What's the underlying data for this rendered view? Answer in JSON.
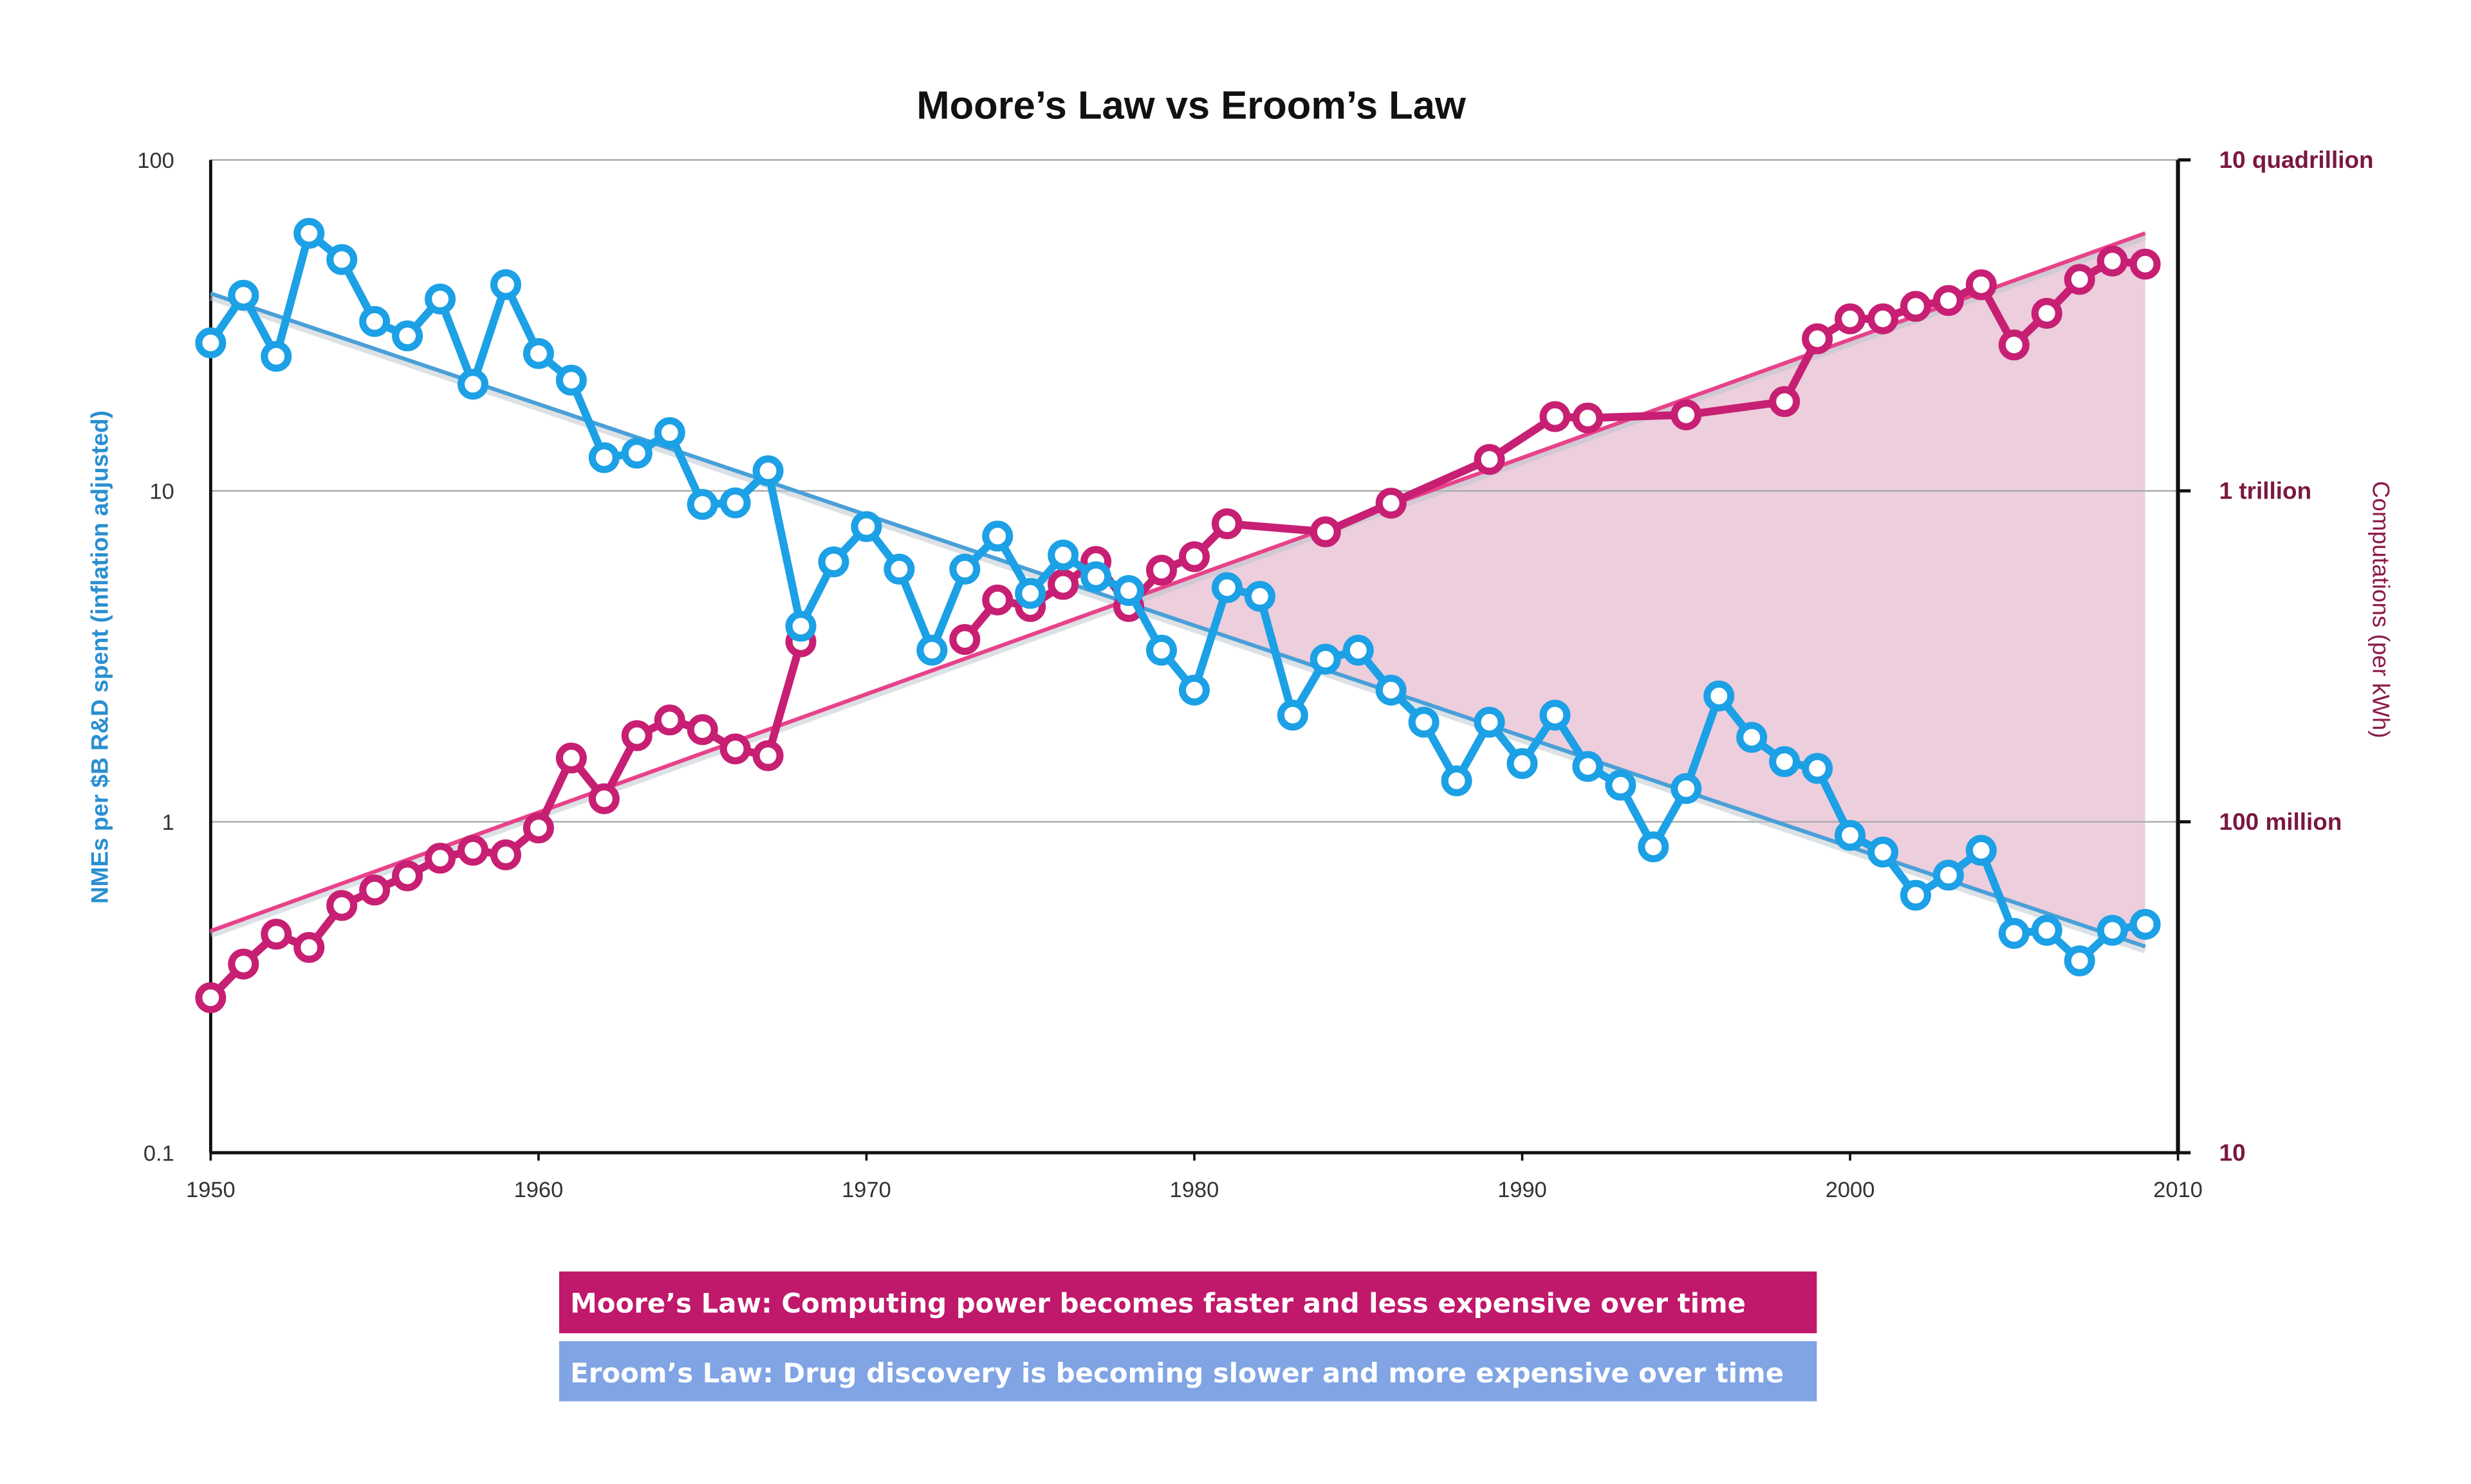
{
  "chart_data": {
    "type": "line",
    "title": "Moore’s Law vs Eroom’s Law",
    "x_ticks": [
      "1950",
      "1960",
      "1970",
      "1980",
      "1990",
      "2000",
      "2010"
    ],
    "xlim": [
      1950,
      2010
    ],
    "left_axis": {
      "label": "NMEs per $B R&D spent (inflation adjusted)",
      "scale": "log",
      "ylim": [
        0.1,
        100
      ],
      "ticks": [
        {
          "value": 100,
          "label": "100"
        },
        {
          "value": 10,
          "label": "10"
        },
        {
          "value": 1,
          "label": "1"
        },
        {
          "value": 0.1,
          "label": "0.1"
        }
      ],
      "color": "#2a8fd0"
    },
    "right_axis": {
      "label": "Computations (per kWh)",
      "scale": "log",
      "ticks": [
        {
          "value": 1e+16,
          "label": "10 quadrillion"
        },
        {
          "value": 1000000000000.0,
          "label": "1 trillion"
        },
        {
          "value": 100000000.0,
          "label": "100 million"
        },
        {
          "value": 10,
          "label": "10"
        }
      ],
      "color": "#7a1840"
    },
    "grid": "horizontal",
    "series": [
      {
        "key": "eroom",
        "axis": "left",
        "color": "#1ca0e6",
        "x": [
          1950,
          1951,
          1952,
          1953,
          1954,
          1955,
          1956,
          1957,
          1958,
          1959,
          1960,
          1961,
          1962,
          1963,
          1964,
          1965,
          1966,
          1967,
          1968,
          1969,
          1970,
          1971,
          1972,
          1973,
          1974,
          1975,
          1976,
          1977,
          1978,
          1979,
          1980,
          1981,
          1982,
          1983,
          1984,
          1985,
          1986,
          1987,
          1988,
          1989,
          1990,
          1991,
          1992,
          1993,
          1994,
          1995,
          1996,
          1997,
          1998,
          1999,
          2000,
          2001,
          2002,
          2003,
          2004,
          2005,
          2006,
          2007,
          2008,
          2009
        ],
        "y": [
          28,
          39,
          25.5,
          60,
          50,
          32.5,
          29.4,
          38,
          21,
          42,
          26,
          21.6,
          12.6,
          13,
          15,
          9.1,
          9.2,
          11.5,
          3.9,
          6.1,
          7.8,
          5.8,
          3.3,
          5.8,
          7.3,
          4.9,
          6.4,
          5.5,
          5.0,
          3.3,
          2.5,
          5.1,
          4.8,
          2.1,
          3.1,
          3.3,
          2.5,
          2.0,
          1.33,
          2.0,
          1.5,
          2.1,
          1.47,
          1.29,
          0.84,
          1.26,
          2.4,
          1.8,
          1.52,
          1.45,
          0.91,
          0.81,
          0.6,
          0.69,
          0.82,
          0.46,
          0.47,
          0.38,
          0.47,
          0.49
        ],
        "trend": [
          [
            1950,
            39.5
          ],
          [
            2009,
            0.42
          ]
        ],
        "trend_color": "#4a9fd8"
      },
      {
        "key": "moore",
        "axis": "right",
        "color": "#c71f73",
        "x": [
          1950,
          1951,
          1952,
          1953,
          1954,
          1955,
          1956,
          1957,
          1958,
          1959,
          1960,
          1961,
          1962,
          1963,
          1964,
          1965,
          1966,
          1967,
          1968,
          1973,
          1974,
          1975,
          1976,
          1977,
          1978,
          1979,
          1980,
          1981,
          1984,
          1986,
          1989,
          1991,
          1992,
          1995,
          1998,
          1999,
          2000,
          2001,
          2002,
          2003,
          2004,
          2005,
          2006,
          2007,
          2008,
          2009
        ],
        "y": [
          19000.0,
          98000.0,
          420000.0,
          220000.0,
          1700000.0,
          3600000.0,
          7200000.0,
          17000000.0,
          25000000.0,
          20000000.0,
          74000000.0,
          590000000.0,
          190000000.0,
          1100000000.0,
          1700000000.0,
          1300000000.0,
          760000000.0,
          630000000.0,
          15000000000.0,
          16000000000.0,
          48000000000.0,
          40000000000.0,
          74000000000.0,
          140000000000.0,
          40000000000.0,
          110000000000.0,
          160000000000.0,
          400000000000.0,
          320000000000.0,
          710000000000.0,
          2400000000000.0,
          7900000000000.0,
          7600000000000.0,
          8300000000000.0,
          12000000000000.0,
          69000000000000.0,
          120000000000000.0,
          120000000000000.0,
          170000000000000.0,
          200000000000000.0,
          310000000000000.0,
          58000000000000.0,
          140000000000000.0,
          360000000000000.0,
          600000000000000.0,
          550000000000000.0
        ],
        "trend": [
          [
            1950,
            490000.0
          ],
          [
            1959.2,
            100000000.0
          ],
          [
            2009,
            1300000000000000.0
          ]
        ],
        "trend_color": "#e8428a"
      }
    ],
    "shaded_gap_color": "#e9c6d6"
  },
  "legend": {
    "moore": {
      "label": "Moore’s Law: Computing power becomes faster and less expensive over time",
      "color": "#c0186a"
    },
    "eroom": {
      "label": "Eroom’s Law: Drug discovery is becoming slower and more expensive over time",
      "color": "#80a4e4"
    }
  }
}
